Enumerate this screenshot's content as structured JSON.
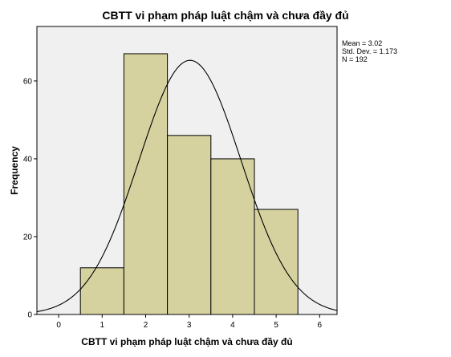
{
  "chart_data": {
    "type": "bar",
    "title": "CBTT vi phạm pháp luật chậm và chưa đầy đủ",
    "xlabel": "CBTT vi phạm pháp luật chậm và chưa đầy đủ",
    "ylabel": "Frequency",
    "categories": [
      1,
      2,
      3,
      4,
      5
    ],
    "values": [
      12,
      67,
      46,
      40,
      27
    ],
    "xlim": [
      -0.5,
      6.4
    ],
    "ylim": [
      0,
      74
    ],
    "x_ticks": [
      0,
      1,
      2,
      3,
      4,
      5,
      6
    ],
    "y_ticks": [
      0,
      20,
      40,
      60
    ],
    "normal_curve": {
      "mean": 3.02,
      "std": 1.173,
      "n": 192,
      "bin_width": 1
    },
    "stats": [
      "Mean = 3.02",
      "Std. Dev. = 1.173",
      "N = 192"
    ],
    "colors": {
      "bar_fill": "#d5d29f",
      "plot_bg": "#f0f0f0",
      "stroke": "#000000"
    }
  }
}
